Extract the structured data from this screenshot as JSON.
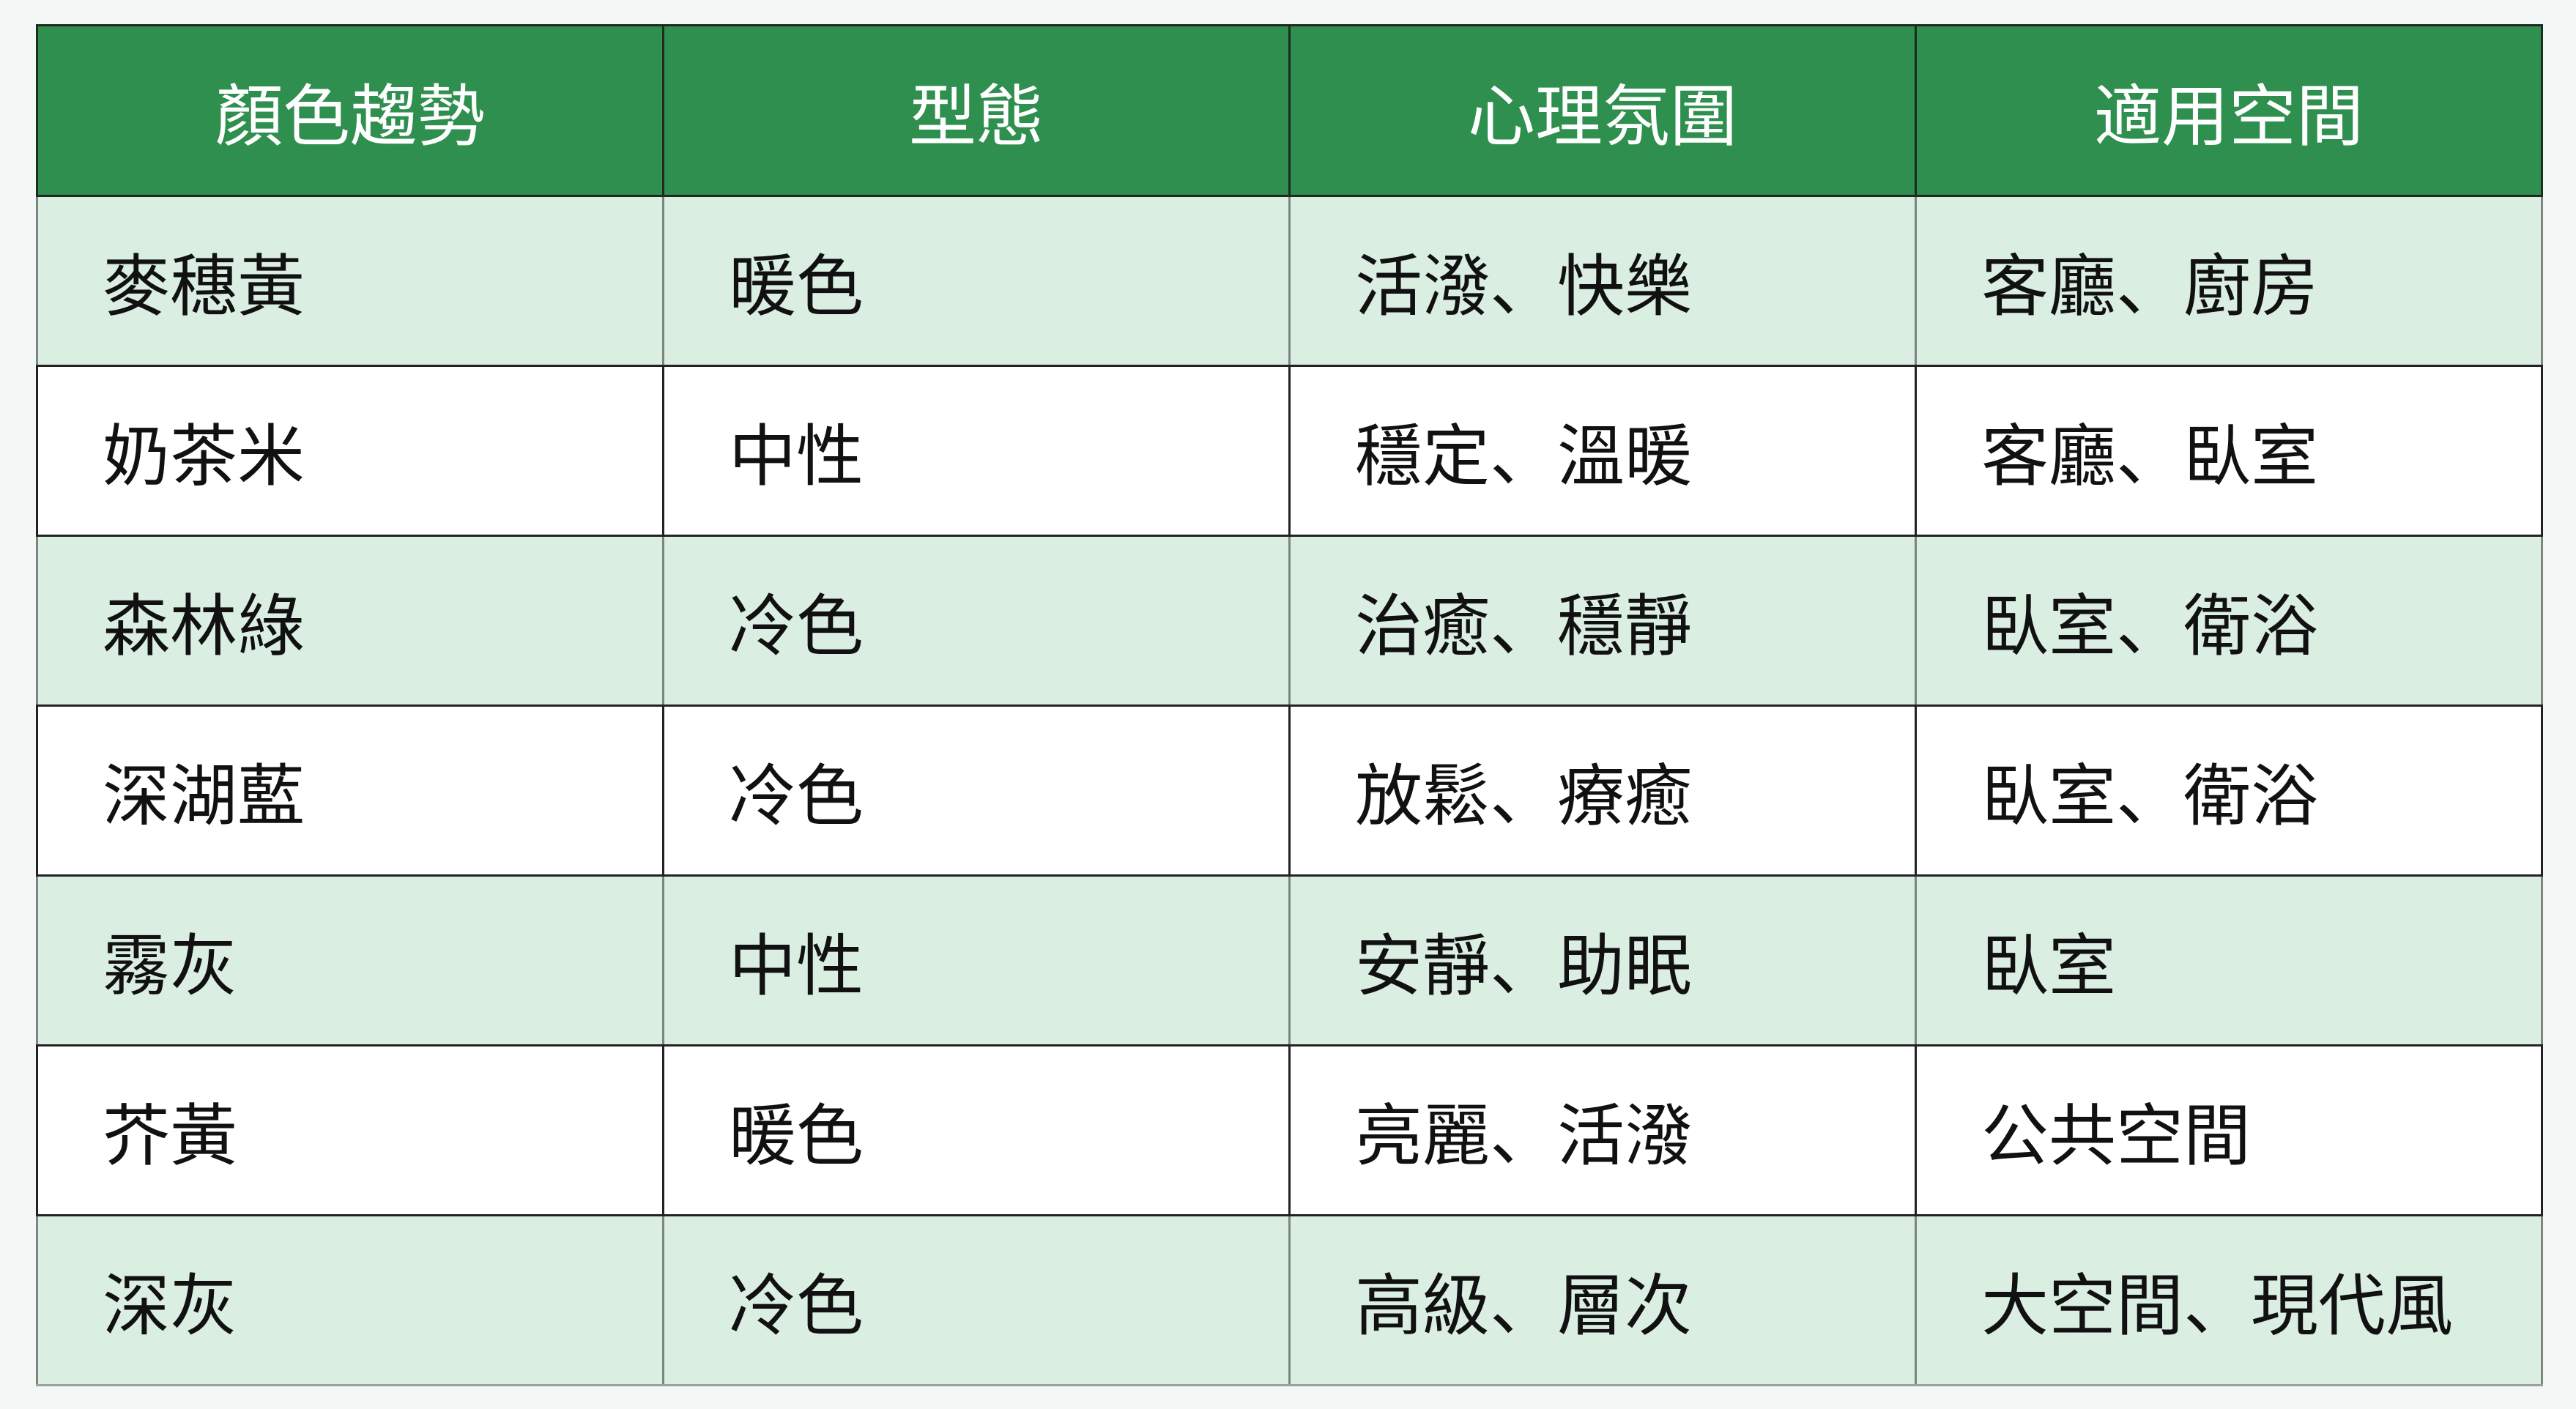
{
  "table": {
    "headers": [
      "顏色趨勢",
      "型態",
      "心理氛圍",
      "適用空間"
    ],
    "rows": [
      [
        "麥穗黃",
        "暖色",
        "活潑、快樂",
        "客廳、廚房"
      ],
      [
        "奶茶米",
        "中性",
        "穩定、溫暖",
        "客廳、臥室"
      ],
      [
        "森林綠",
        "冷色",
        "治癒、穩靜",
        "臥室、衛浴"
      ],
      [
        "深湖藍",
        "冷色",
        "放鬆、療癒",
        "臥室、衛浴"
      ],
      [
        "霧灰",
        "中性",
        "安靜、助眠",
        "臥室"
      ],
      [
        "芥黃",
        "暖色",
        "亮麗、活潑",
        "公共空間"
      ],
      [
        "深灰",
        "冷色",
        "高級、層次",
        "大空間、現代風"
      ]
    ]
  },
  "colors": {
    "header_bg": "#2e8f4e",
    "alt_row_bg": "#dbeee2",
    "row_bg": "#ffffff"
  }
}
